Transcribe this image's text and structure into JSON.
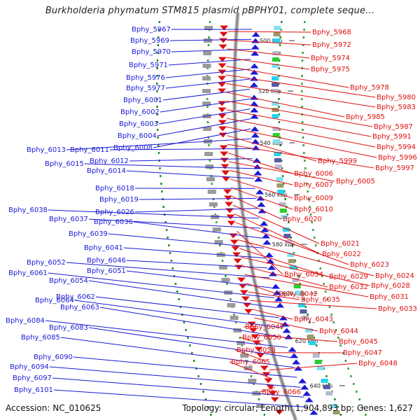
{
  "title": "Burkholderia phymatum STM815 plasmid pBPHY01, complete seque...",
  "footer": {
    "accession": "Accession: NC_010625",
    "topology": "Topology: circular; Length: 1,904,893 bp; Genes: 1,627"
  },
  "colors": {
    "reverse_strand": "#1a1ad6",
    "forward_strand": "#e01010",
    "backbone": "#8a8a8a"
  },
  "ticks": [
    "500 kbp",
    "520 kbp",
    "540 kbp",
    "560 kbp",
    "580 kbp",
    "600 kbp",
    "620 kbp",
    "640 kbp"
  ],
  "left_labels": [
    "Bphy_5967",
    "Bphy_5969",
    "Bphy_5970",
    "Bphy_5971",
    "Bphy_5976",
    "Bphy_5977",
    "Bphy_6001",
    "Bphy_6002",
    "Bphy_6003",
    "Bphy_6004",
    "Bphy_6008",
    "Bphy_6013",
    "Bphy_6011",
    "Bphy_6012",
    "Bphy_6015",
    "Bphy_6014",
    "Bphy_6018",
    "Bphy_6019",
    "Bphy_6026",
    "Bphy_6038",
    "Bphy_6037",
    "Bphy_6036",
    "Bphy_6039",
    "Bphy_6041",
    "Bphy_6046",
    "Bphy_6052",
    "Bphy_6051",
    "Bphy_6061",
    "Bphy_6054",
    "Bphy_6062",
    "Bphy_6064",
    "Bphy_6063",
    "Bphy_6084",
    "Bphy_6083",
    "Bphy_6085",
    "Bphy_6090",
    "Bphy_6094",
    "Bphy_6097",
    "Bphy_6101"
  ],
  "right_labels": [
    "Bphy_5968",
    "Bphy_5972",
    "Bphy_5974",
    "Bphy_5975",
    "Bphy_5978",
    "Bphy_5980",
    "Bphy_5983",
    "Bphy_5985",
    "Bphy_5987",
    "Bphy_5991",
    "Bphy_5994",
    "Bphy_5996",
    "Bphy_5999",
    "Bphy_5997",
    "Bphy_6006",
    "Bphy_6005",
    "Bphy_6007",
    "Bphy_6009",
    "Bphy_6010",
    "Bphy_6020",
    "Bphy_6021",
    "Bphy_6022",
    "Bphy_6023",
    "Bphy_6034",
    "Bphy_6024",
    "Bphy_6029",
    "Bphy_6028",
    "Bphy_6032",
    "Bphy_6031",
    "Bphy_6042",
    "Bphy_6035",
    "Bphy_6033",
    "Bphy_6043",
    "Bphy_6044",
    "Bphy_6049",
    "Bphy_6045",
    "Bphy_6050",
    "Bphy_6047",
    "Bphy_6058",
    "Bphy_6048",
    "Bphy_6065",
    "Bphy_6066"
  ]
}
